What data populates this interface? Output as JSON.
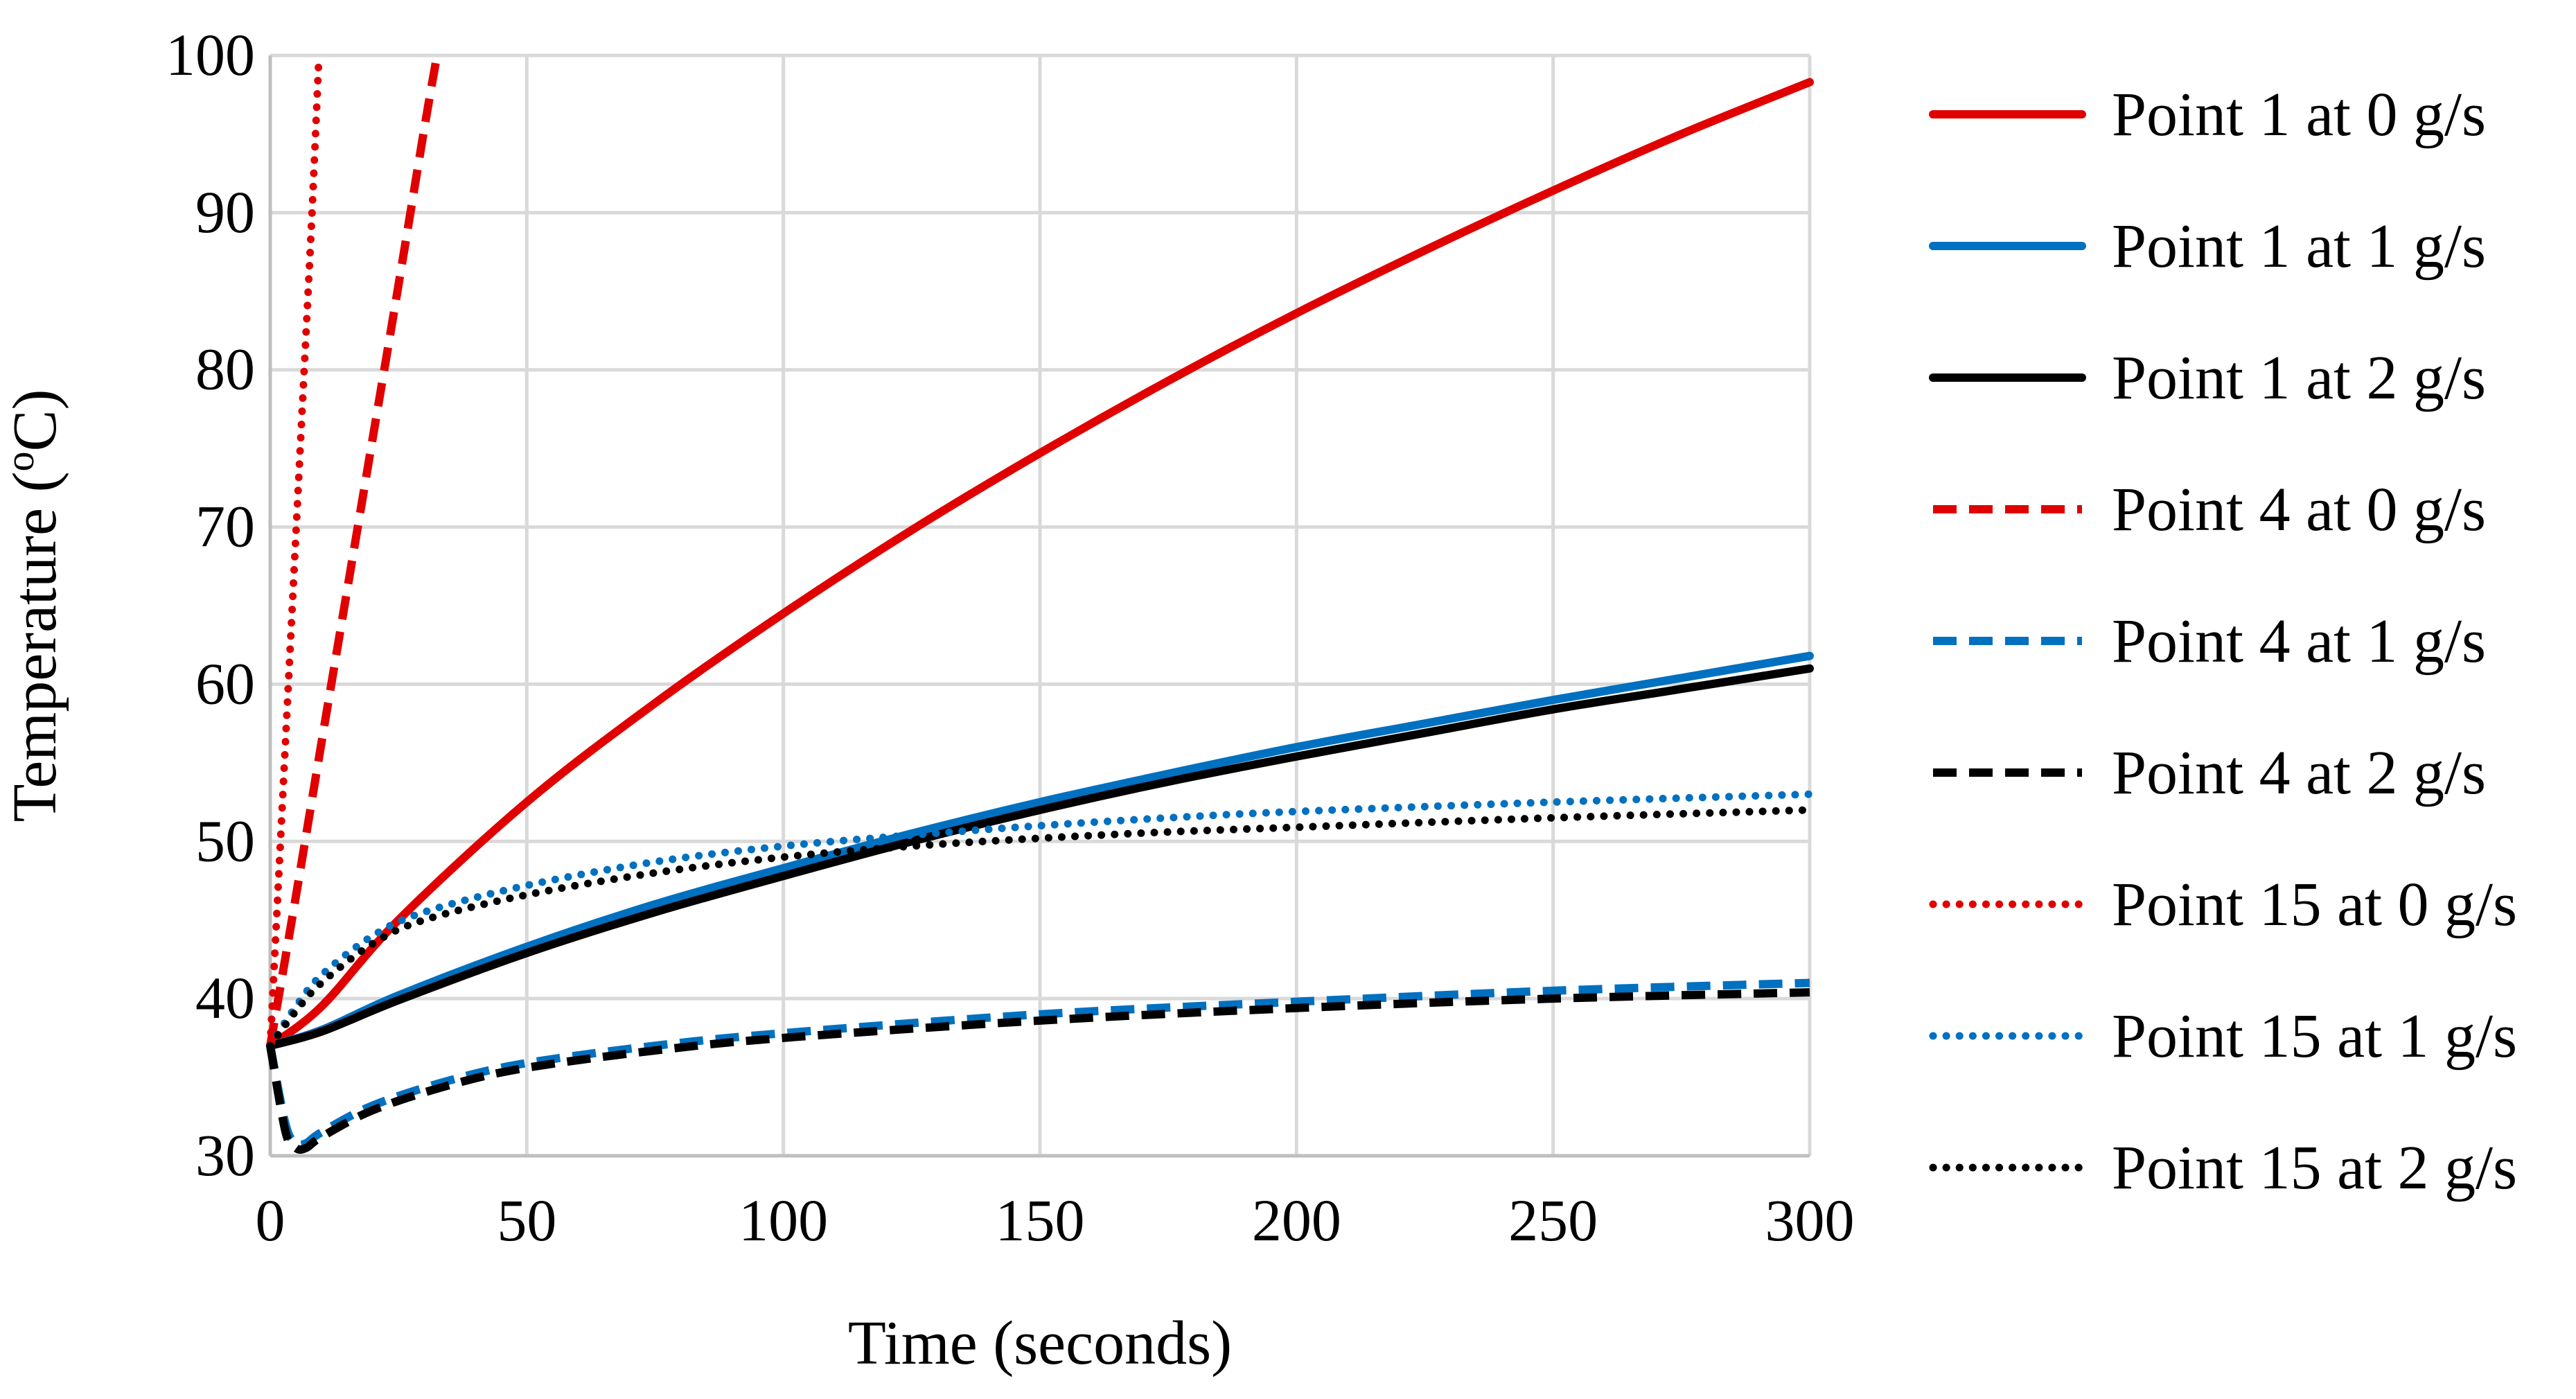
{
  "chart_data": {
    "type": "line",
    "title": "",
    "xlabel": "Time (seconds)",
    "ylabel_main": "Temperature (",
    "ylabel_sup": "o",
    "ylabel_end": "C)",
    "xlim": [
      0,
      300
    ],
    "ylim": [
      30,
      100
    ],
    "xticks": [
      0,
      50,
      100,
      150,
      200,
      250,
      300
    ],
    "yticks": [
      30,
      40,
      50,
      60,
      70,
      80,
      90,
      100
    ],
    "xtick_labels": [
      "0",
      "50",
      "100",
      "150",
      "200",
      "250",
      "300"
    ],
    "ytick_labels": [
      "30",
      "40",
      "50",
      "60",
      "70",
      "80",
      "90",
      "100"
    ],
    "grid": true,
    "legend_position": "right",
    "series": [
      {
        "name": "Point 1 at 0 g/s",
        "color": "#e00000",
        "style": "solid",
        "x": [
          0,
          10,
          25,
          50,
          75,
          100,
          125,
          150,
          175,
          200,
          225,
          250,
          275,
          300
        ],
        "y": [
          37,
          39.5,
          45,
          52.5,
          58.8,
          64.5,
          69.8,
          74.7,
          79.3,
          83.6,
          87.6,
          91.4,
          95,
          98.3
        ]
      },
      {
        "name": "Point 1 at 1 g/s",
        "color": "#0070c0",
        "style": "solid",
        "x": [
          0,
          10,
          25,
          50,
          75,
          100,
          125,
          150,
          175,
          200,
          225,
          250,
          275,
          300
        ],
        "y": [
          37,
          38,
          40.2,
          43.3,
          46,
          48.3,
          50.5,
          52.5,
          54.3,
          56,
          57.5,
          59,
          60.4,
          61.8
        ]
      },
      {
        "name": "Point 1 at 2 g/s",
        "color": "#000000",
        "style": "solid",
        "x": [
          0,
          10,
          25,
          50,
          75,
          100,
          125,
          150,
          175,
          200,
          225,
          250,
          275,
          300
        ],
        "y": [
          37,
          37.9,
          39.9,
          42.9,
          45.5,
          47.8,
          50,
          52,
          53.8,
          55.4,
          56.9,
          58.4,
          59.7,
          61
        ]
      },
      {
        "name": "Point 4 at 0 g/s",
        "color": "#e00000",
        "style": "dashed",
        "x": [
          0,
          5,
          10,
          15,
          20,
          25,
          30,
          32.5
        ],
        "y": [
          37,
          46.5,
          56.3,
          66,
          75.7,
          85.4,
          95.3,
          100
        ]
      },
      {
        "name": "Point 4 at 1 g/s",
        "color": "#0070c0",
        "style": "dashed",
        "x": [
          0,
          3,
          5,
          7,
          10,
          20,
          35,
          50,
          75,
          100,
          150,
          200,
          250,
          300
        ],
        "y": [
          37,
          32,
          30.8,
          30.8,
          31.5,
          33.2,
          34.8,
          35.9,
          37,
          37.8,
          39,
          39.8,
          40.5,
          41
        ]
      },
      {
        "name": "Point 4 at 2 g/s",
        "color": "#000000",
        "style": "dashed",
        "x": [
          0,
          3,
          5,
          7,
          10,
          20,
          35,
          50,
          75,
          100,
          150,
          200,
          250,
          300
        ],
        "y": [
          37,
          31.5,
          30.5,
          30.5,
          31.2,
          32.9,
          34.5,
          35.6,
          36.7,
          37.5,
          38.6,
          39.4,
          40,
          40.4
        ]
      },
      {
        "name": "Point 15 at 0 g/s",
        "color": "#e00000",
        "style": "dotted",
        "x": [
          0,
          2,
          4,
          6,
          8,
          9.5
        ],
        "y": [
          37,
          50,
          63,
          76,
          89,
          100
        ]
      },
      {
        "name": "Point 15 at 1 g/s",
        "color": "#0070c0",
        "style": "dotted",
        "x": [
          0,
          5,
          10,
          20,
          30,
          50,
          75,
          100,
          125,
          150,
          175,
          200,
          250,
          300
        ],
        "y": [
          37,
          39.5,
          41.5,
          44,
          45.5,
          47.2,
          48.7,
          49.7,
          50.4,
          51,
          51.5,
          51.9,
          52.5,
          53
        ]
      },
      {
        "name": "Point 15 at 2 g/s",
        "color": "#000000",
        "style": "dotted",
        "x": [
          0,
          5,
          10,
          20,
          30,
          50,
          75,
          100,
          125,
          150,
          175,
          200,
          250,
          300
        ],
        "y": [
          37,
          39.2,
          41,
          43.5,
          45,
          46.6,
          48,
          49,
          49.7,
          50.2,
          50.6,
          50.9,
          51.5,
          52
        ]
      }
    ]
  }
}
